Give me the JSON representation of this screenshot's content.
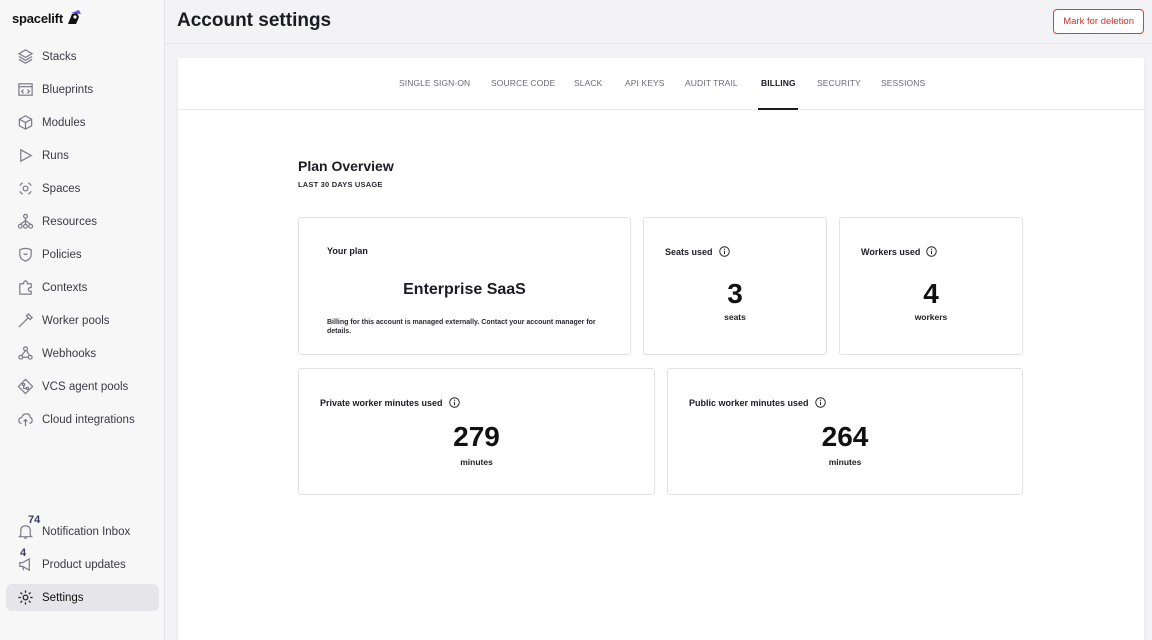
{
  "brand": {
    "name": "spacelift"
  },
  "sidebar": {
    "items": [
      {
        "label": "Stacks",
        "icon": "stacks-icon"
      },
      {
        "label": "Blueprints",
        "icon": "blueprints-icon"
      },
      {
        "label": "Modules",
        "icon": "modules-icon"
      },
      {
        "label": "Runs",
        "icon": "runs-icon"
      },
      {
        "label": "Spaces",
        "icon": "spaces-icon"
      },
      {
        "label": "Resources",
        "icon": "resources-icon"
      },
      {
        "label": "Policies",
        "icon": "policies-icon"
      },
      {
        "label": "Contexts",
        "icon": "contexts-icon"
      },
      {
        "label": "Worker pools",
        "icon": "worker-pools-icon"
      },
      {
        "label": "Webhooks",
        "icon": "webhooks-icon"
      },
      {
        "label": "VCS agent pools",
        "icon": "vcs-agent-pools-icon"
      },
      {
        "label": "Cloud integrations",
        "icon": "cloud-integrations-icon"
      }
    ],
    "bottom": {
      "notifications": {
        "label": "Notification Inbox",
        "badge": "74"
      },
      "updates": {
        "label": "Product updates",
        "badge": "4"
      },
      "settings": {
        "label": "Settings"
      }
    }
  },
  "header": {
    "title": "Account settings",
    "danger_button": "Mark for deletion"
  },
  "tabs": [
    {
      "label": "SINGLE SIGN-ON"
    },
    {
      "label": "SOURCE CODE"
    },
    {
      "label": "SLACK"
    },
    {
      "label": "API KEYS"
    },
    {
      "label": "AUDIT TRAIL"
    },
    {
      "label": "BILLING",
      "active": true
    },
    {
      "label": "SECURITY"
    },
    {
      "label": "SESSIONS"
    }
  ],
  "overview": {
    "title": "Plan Overview",
    "subtitle": "LAST 30 DAYS USAGE",
    "plan": {
      "label": "Your plan",
      "name": "Enterprise SaaS",
      "note": "Billing for this account is managed externally. Contact your account manager for details."
    },
    "seats": {
      "label": "Seats used",
      "value": "3",
      "unit": "seats"
    },
    "workers": {
      "label": "Workers used",
      "value": "4",
      "unit": "workers"
    },
    "private_minutes": {
      "label": "Private worker minutes used",
      "value": "279",
      "unit": "minutes"
    },
    "public_minutes": {
      "label": "Public worker minutes used",
      "value": "264",
      "unit": "minutes"
    }
  },
  "colors": {
    "danger": "#c9342a",
    "accent": "#1b1b24",
    "badge": "#3b3b62"
  }
}
